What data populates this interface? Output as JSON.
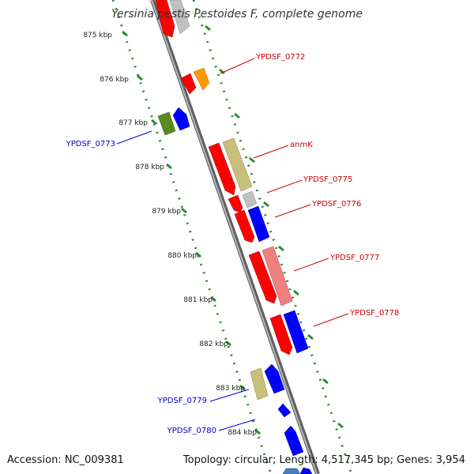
{
  "title": "Yersinia pestis Pestoides F, complete genome",
  "accession": "Accession: NC_009381",
  "topology": "Topology: circular; Length: 4,517,345 bp; Genes: 3,954",
  "ticks": [
    "875 kbp",
    "876 kbp",
    "877 kbp",
    "878 kbp",
    "879 kbp",
    "880 kbp",
    "881 kbp",
    "882 kbp",
    "883 kbp",
    "884 kbp"
  ],
  "gene_labels": [
    {
      "text": "YPDSF_0772",
      "strand": "plus",
      "color": "#cc0000"
    },
    {
      "text": "YPDSF_0773",
      "strand": "minus",
      "color": "#0000cc"
    },
    {
      "text": "anmK",
      "strand": "plus",
      "color": "#cc0000"
    },
    {
      "text": "YPDSF_0775",
      "strand": "plus",
      "color": "#cc0000"
    },
    {
      "text": "YPDSF_0776",
      "strand": "plus",
      "color": "#cc0000"
    },
    {
      "text": "YPDSF_0777",
      "strand": "plus",
      "color": "#cc0000"
    },
    {
      "text": "YPDSF_0778",
      "strand": "plus",
      "color": "#cc0000"
    },
    {
      "text": "YPDSF_0779",
      "strand": "minus",
      "color": "#0000cc"
    },
    {
      "text": "YPDSF_0780",
      "strand": "minus",
      "color": "#0000cc"
    }
  ],
  "colors": {
    "backbone": "#8a8a8a",
    "tick_line": "#2e8b2e",
    "cds_red": "#ff0000",
    "cds_blue": "#0000ff",
    "khaki": "#c8c07a",
    "orange": "#ff9900",
    "grey": "#c0c0c0",
    "olive": "#5a8a1a",
    "pink": "#f08080"
  }
}
